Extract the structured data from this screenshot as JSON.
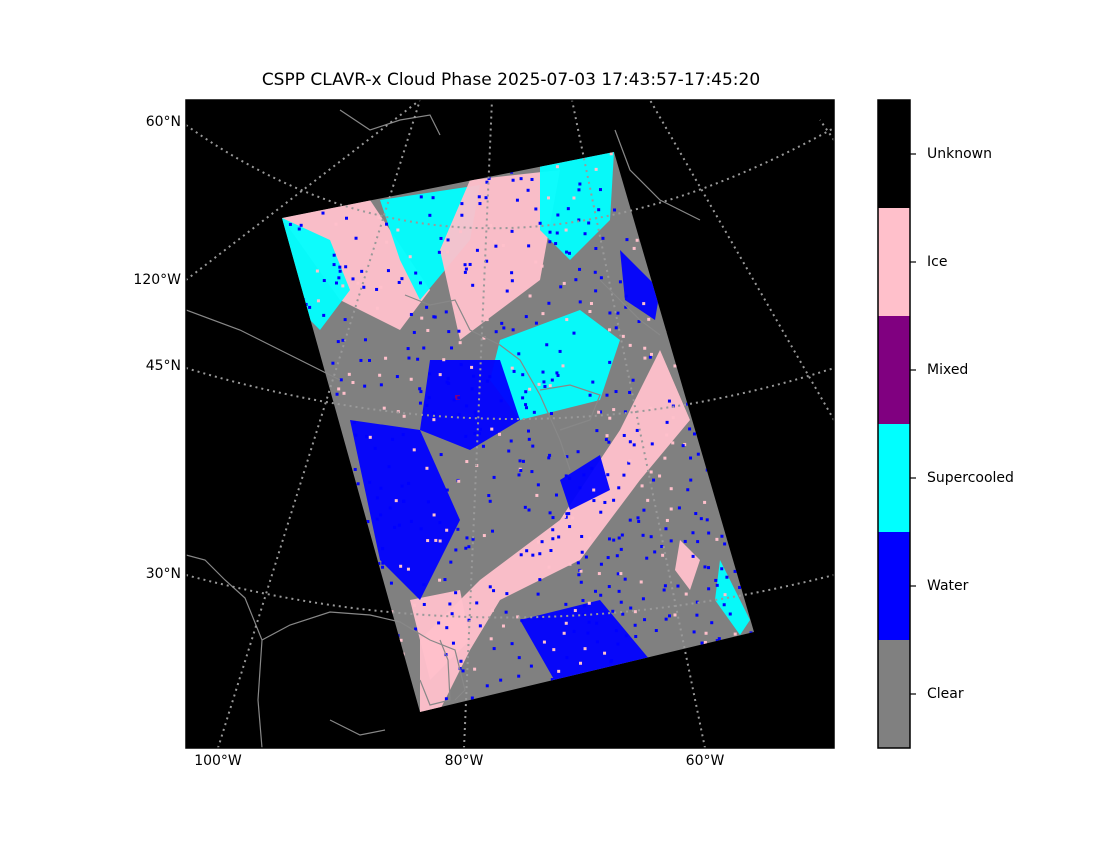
{
  "title": "CSPP CLAVR-x Cloud Phase 2025-07-03 17:43:57-17:45:20",
  "map": {
    "background": "#000000",
    "lat_labels": [
      "60°N",
      "45°N",
      "30°N"
    ],
    "lon_label_left": "120°W",
    "lon_labels_bottom": [
      "100°W",
      "80°W",
      "60°W"
    ]
  },
  "colorbar": {
    "classes": [
      {
        "label": "Clear",
        "color": "#808080"
      },
      {
        "label": "Water",
        "color": "#0000ff"
      },
      {
        "label": "Supercooled",
        "color": "#00ffff"
      },
      {
        "label": "Mixed",
        "color": "#800080"
      },
      {
        "label": "Ice",
        "color": "#ffc0cb"
      },
      {
        "label": "Unknown",
        "color": "#000000"
      }
    ]
  }
}
